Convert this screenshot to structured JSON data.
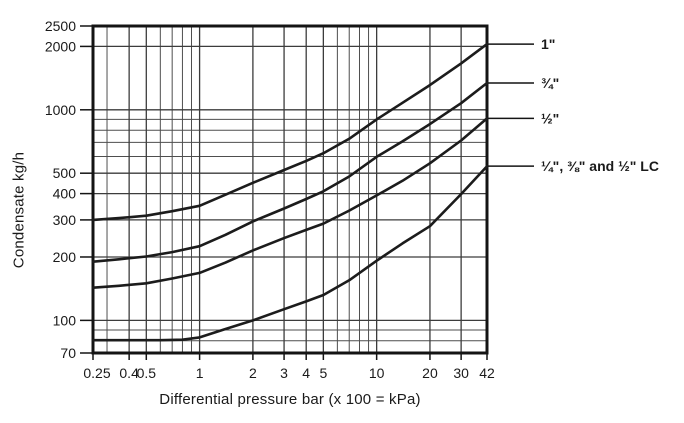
{
  "chart_data": {
    "type": "line",
    "title": "",
    "xlabel": "Differential pressure bar (x 100 = kPa)",
    "ylabel": "Condensate kg/h",
    "x_scale": "log",
    "y_scale": "log",
    "xlim": [
      0.25,
      42
    ],
    "ylim": [
      70,
      2500
    ],
    "grid": true,
    "legend_position": "labels-right-of-plot",
    "x_tick_values": [
      0.25,
      0.4,
      0.5,
      1,
      2,
      3,
      4,
      5,
      10,
      20,
      30,
      42
    ],
    "x_tick_labels": [
      "0.25",
      "0.4",
      "0.5",
      "1",
      "2",
      "3",
      "4",
      "5",
      "10",
      "20",
      "30",
      "42"
    ],
    "y_tick_values": [
      70,
      100,
      200,
      300,
      400,
      500,
      1000,
      2000,
      2500
    ],
    "y_tick_labels": [
      "70",
      "100",
      "200",
      "300",
      "400",
      "500",
      "1000",
      "2000",
      "2500"
    ],
    "x_minor_gridlines": [
      0.3,
      0.6,
      0.7,
      0.8,
      0.9,
      6,
      7,
      8,
      9
    ],
    "y_minor_gridlines": [
      80,
      90,
      600,
      700,
      800,
      900
    ],
    "series": [
      {
        "name": "1\"",
        "points": [
          [
            0.25,
            300
          ],
          [
            0.35,
            306
          ],
          [
            0.5,
            314
          ],
          [
            0.7,
            330
          ],
          [
            1,
            350
          ],
          [
            1.4,
            395
          ],
          [
            2,
            450
          ],
          [
            3,
            518
          ],
          [
            4,
            572
          ],
          [
            5,
            622
          ],
          [
            7,
            728
          ],
          [
            10,
            900
          ],
          [
            14,
            1080
          ],
          [
            20,
            1310
          ],
          [
            30,
            1660
          ],
          [
            42,
            2050
          ]
        ]
      },
      {
        "name": "¾\"",
        "points": [
          [
            0.25,
            190
          ],
          [
            0.35,
            195
          ],
          [
            0.5,
            201
          ],
          [
            0.7,
            211
          ],
          [
            1,
            225
          ],
          [
            1.4,
            255
          ],
          [
            2,
            295
          ],
          [
            3,
            340
          ],
          [
            4,
            377
          ],
          [
            5,
            410
          ],
          [
            7,
            482
          ],
          [
            10,
            598
          ],
          [
            14,
            708
          ],
          [
            20,
            855
          ],
          [
            30,
            1075
          ],
          [
            42,
            1340
          ]
        ]
      },
      {
        "name": "½\"",
        "points": [
          [
            0.25,
            143
          ],
          [
            0.35,
            146
          ],
          [
            0.5,
            150
          ],
          [
            0.7,
            158
          ],
          [
            1,
            168
          ],
          [
            1.4,
            188
          ],
          [
            2,
            215
          ],
          [
            3,
            246
          ],
          [
            4,
            269
          ],
          [
            5,
            288
          ],
          [
            7,
            332
          ],
          [
            10,
            392
          ],
          [
            14,
            460
          ],
          [
            20,
            557
          ],
          [
            30,
            715
          ],
          [
            42,
            910
          ]
        ]
      },
      {
        "name": "¼\", ⅜\" and ½\" LC",
        "points": [
          [
            0.25,
            80.5
          ],
          [
            0.4,
            80.5
          ],
          [
            0.6,
            80.5
          ],
          [
            0.8,
            81
          ],
          [
            1,
            83
          ],
          [
            1.4,
            91
          ],
          [
            2,
            100
          ],
          [
            3,
            113
          ],
          [
            4,
            123
          ],
          [
            5,
            132
          ],
          [
            7,
            155
          ],
          [
            10,
            192
          ],
          [
            14,
            232
          ],
          [
            20,
            280
          ],
          [
            30,
            398
          ],
          [
            42,
            540
          ]
        ]
      }
    ],
    "colors": {
      "background": "#ffffff",
      "curve": "#1c1c1c",
      "grid_major": "#3c3c3c",
      "grid_minor": "#4e4e4e",
      "border": "#141414",
      "text": "#1a1a1a"
    }
  }
}
